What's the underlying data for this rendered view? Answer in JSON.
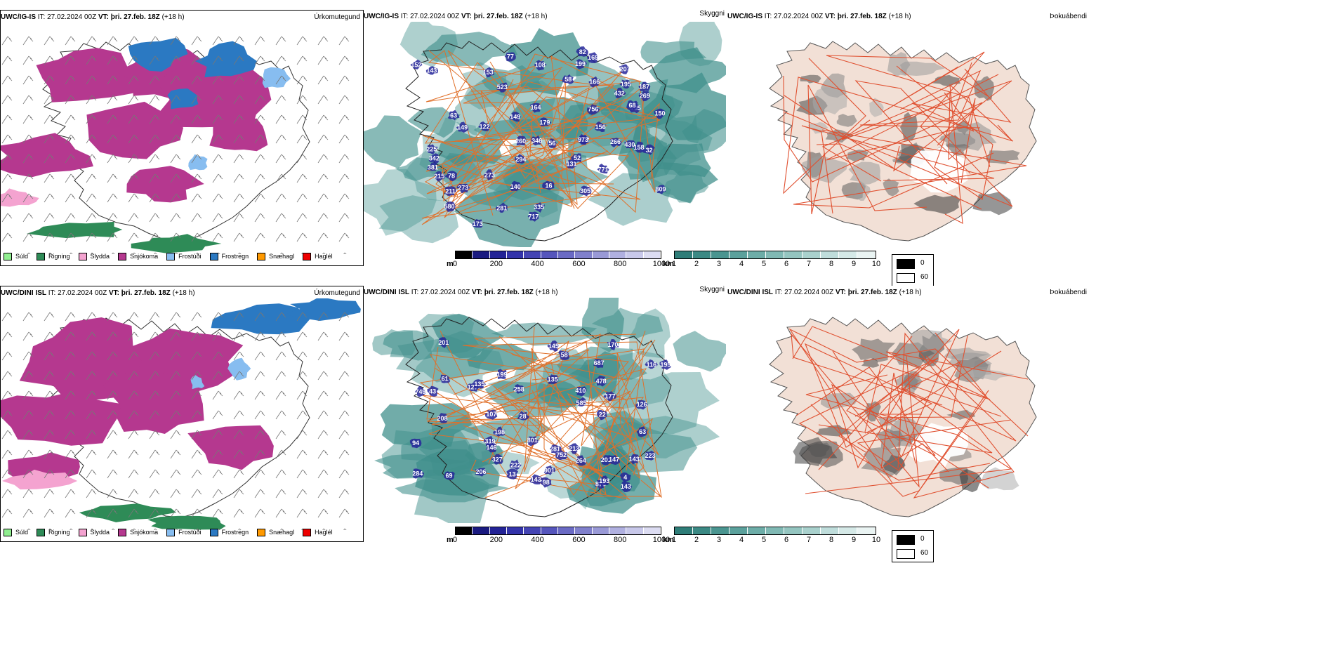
{
  "rows": [
    {
      "precip": {
        "model": "UWC/IG-IS",
        "it": "IT: 27.02.2024 00Z",
        "vt_label": "VT:",
        "vt": "þri. 27.feb. 18Z",
        "lead": "(+18 h)",
        "right_label": "Úrkomutegund"
      },
      "vis": {
        "model": "UWC/IG-IS",
        "it": "IT: 27.02.2024 00Z",
        "vt_label": "VT:",
        "vt": "þri. 27.feb. 18Z",
        "lead": "(+18 h)",
        "right_label": "Skyggni",
        "cloud_labels": [
          "305",
          "523",
          "717",
          "381",
          "173",
          "149",
          "215",
          "202",
          "140",
          "294",
          "122",
          "211",
          "169",
          "156",
          "153",
          "131",
          "166",
          "179",
          "207",
          "195",
          "164",
          "152",
          "158",
          "430",
          "432",
          "260",
          "273",
          "269",
          "580",
          "346",
          "809",
          "756",
          "342",
          "973",
          "266",
          "771",
          "199",
          "143",
          "63",
          "58",
          "273",
          "150",
          "149",
          "195",
          "68",
          "225",
          "82",
          "335",
          "187",
          "281",
          "16",
          "77",
          "56",
          "52",
          "78",
          "32",
          "108"
        ]
      },
      "fog": {
        "model": "UWC/IG-IS",
        "it": "IT: 27.02.2024 00Z",
        "vt_label": "VT:",
        "vt": "þri. 27.feb. 18Z",
        "lead": "(+18 h)",
        "right_label": "Þokuábendi"
      }
    },
    {
      "precip": {
        "model": "UWC/DINI ISL",
        "it": "IT: 27.02.2024 00Z",
        "vt_label": "VT:",
        "vt": "þri. 27.feb. 18Z",
        "lead": "(+18 h)",
        "right_label": "Úrkomutegund"
      },
      "vis": {
        "model": "UWC/DINI ISL",
        "it": "IT: 27.02.2024 00Z",
        "vt_label": "VT:",
        "vt": "þri. 27.feb. 18Z",
        "lead": "(+18 h)",
        "right_label": "Skyggni",
        "cloud_labels": [
          "410",
          "749",
          "206",
          "264",
          "199",
          "143",
          "222",
          "213",
          "327",
          "145",
          "135",
          "107",
          "177",
          "201",
          "801",
          "478",
          "223",
          "143",
          "208",
          "876",
          "284",
          "281",
          "143",
          "687",
          "22",
          "126",
          "319",
          "198",
          "58",
          "13",
          "94",
          "752",
          "585",
          "258",
          "901",
          "170",
          "127",
          "201",
          "28",
          "61",
          "195",
          "135",
          "193",
          "4",
          "116",
          "147",
          "146",
          "69",
          "63",
          "43",
          "98"
        ]
      },
      "fog": {
        "model": "UWC/DINI ISL",
        "it": "IT: 27.02.2024 00Z",
        "vt_label": "VT:",
        "vt": "þri. 27.feb. 18Z",
        "lead": "(+18 h)",
        "right_label": "Þokuábendi"
      }
    }
  ],
  "precip_legend": [
    {
      "label": "Súld",
      "color": "#90ee90"
    },
    {
      "label": "Rigning",
      "color": "#2e8b57"
    },
    {
      "label": "Slydda",
      "color": "#f4a3d0"
    },
    {
      "label": "Snjókoma",
      "color": "#b5388f"
    },
    {
      "label": "Frostúði",
      "color": "#87bdf0"
    },
    {
      "label": "Frostregn",
      "color": "#2b79c2"
    },
    {
      "label": "Snæhagl",
      "color": "#ff9900"
    },
    {
      "label": "Haglél",
      "color": "#ee0000"
    }
  ],
  "cloudbase_scale": {
    "unit": "m",
    "ticks": [
      "0",
      "200",
      "400",
      "600",
      "800",
      "1000"
    ],
    "colors": [
      "#000000",
      "#1a1a80",
      "#232396",
      "#3333aa",
      "#4444b4",
      "#5555bc",
      "#6a6ac4",
      "#8080cc",
      "#9999d6",
      "#b0b0e0",
      "#c8c8ea",
      "#dcdcf2"
    ]
  },
  "vis_scale": {
    "unit": "km",
    "ticks": [
      "1",
      "2",
      "3",
      "4",
      "5",
      "6",
      "7",
      "8",
      "9",
      "10"
    ],
    "colors": [
      "#2e7d78",
      "#3b8984",
      "#4a9590",
      "#5ba19c",
      "#6dada8",
      "#80b9b4",
      "#94c5c0",
      "#a9d1cd",
      "#bfdddb",
      "#d5e9e7",
      "#eaf4f3"
    ]
  },
  "fog_legend": [
    {
      "label": "0",
      "color": "#000000"
    },
    {
      "label": "60",
      "color": "#ffffff"
    }
  ],
  "colors": {
    "snow": "#b5388f",
    "freezing_rain": "#2b79c2",
    "freezing_drizzle": "#87bdf0",
    "rain": "#2e8b57",
    "sleet": "#f4a3d0",
    "vis_teal": "#3f8f8b",
    "cloud_blue": "#26269a",
    "roads": "#e0702a",
    "fog_land": "#f2e0d6",
    "fog_roads": "#e05030"
  }
}
